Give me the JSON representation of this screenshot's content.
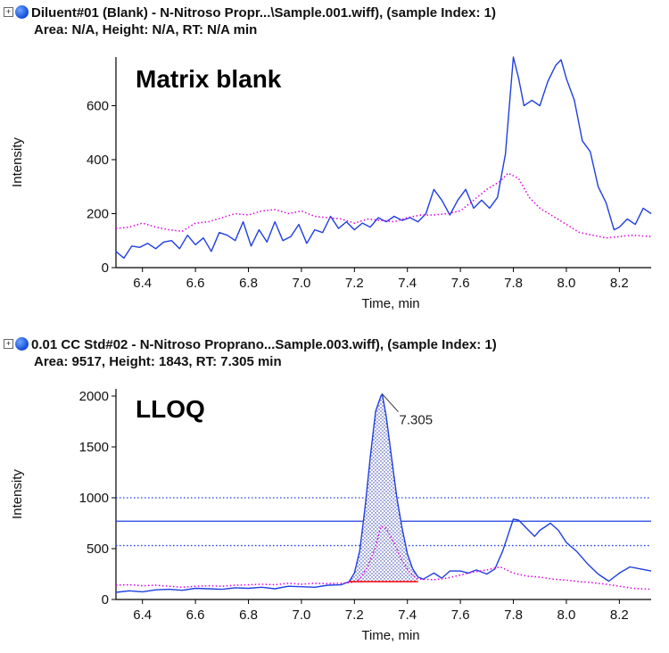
{
  "panels": [
    {
      "expander": "+",
      "header": "Diluent#01 (Blank) - N-Nitroso Propr...\\Sample.001.wiff), (sample Index: 1)",
      "subheader": "Area: N/A, Height: N/A, RT: N/A min",
      "colors": {
        "blue": "#1f3fe0",
        "magenta": "#e000e0",
        "red": "#ff0000"
      }
    },
    {
      "expander": "+",
      "header": "0.01 CC Std#02 - N-Nitroso Proprano...Sample.003.wiff), (sample Index: 1)",
      "subheader": "Area: 9517, Height: 1843, RT: 7.305 min"
    }
  ],
  "chart_data": [
    {
      "type": "line",
      "label": "Matrix blank",
      "xlabel": "Time, min",
      "ylabel": "Intensity",
      "xlim": [
        6.3,
        8.32
      ],
      "ylim": [
        0,
        780
      ],
      "xticks": [
        6.4,
        6.6,
        6.8,
        7.0,
        7.2,
        7.4,
        7.6,
        7.8,
        8.0,
        8.2
      ],
      "yticks": [
        0,
        200,
        400,
        600
      ],
      "series": [
        {
          "color": "#1f3fe0",
          "style": "solid",
          "x": [
            6.3,
            6.33,
            6.36,
            6.39,
            6.42,
            6.45,
            6.48,
            6.51,
            6.54,
            6.57,
            6.6,
            6.63,
            6.66,
            6.69,
            6.72,
            6.75,
            6.78,
            6.81,
            6.84,
            6.87,
            6.9,
            6.93,
            6.96,
            6.99,
            7.02,
            7.05,
            7.08,
            7.11,
            7.14,
            7.17,
            7.2,
            7.23,
            7.26,
            7.29,
            7.32,
            7.35,
            7.38,
            7.41,
            7.44,
            7.47,
            7.5,
            7.53,
            7.56,
            7.59,
            7.62,
            7.65,
            7.68,
            7.71,
            7.74,
            7.77,
            7.8,
            7.82,
            7.84,
            7.87,
            7.9,
            7.93,
            7.96,
            7.98,
            8.0,
            8.03,
            8.06,
            8.09,
            8.12,
            8.15,
            8.18,
            8.2,
            8.23,
            8.26,
            8.29,
            8.32
          ],
          "y": [
            60,
            35,
            80,
            75,
            90,
            70,
            95,
            100,
            70,
            120,
            85,
            110,
            60,
            130,
            120,
            100,
            170,
            80,
            140,
            95,
            170,
            100,
            115,
            160,
            90,
            140,
            130,
            190,
            145,
            170,
            140,
            165,
            150,
            185,
            170,
            190,
            175,
            185,
            170,
            200,
            290,
            250,
            195,
            250,
            290,
            220,
            250,
            220,
            260,
            420,
            780,
            700,
            600,
            620,
            600,
            690,
            750,
            770,
            700,
            620,
            470,
            430,
            300,
            240,
            140,
            150,
            180,
            160,
            220,
            200
          ]
        },
        {
          "color": "#e000e0",
          "style": "dotted",
          "x": [
            6.3,
            6.35,
            6.4,
            6.45,
            6.5,
            6.55,
            6.6,
            6.65,
            6.7,
            6.75,
            6.8,
            6.85,
            6.9,
            6.95,
            7.0,
            7.05,
            7.1,
            7.15,
            7.2,
            7.25,
            7.3,
            7.35,
            7.4,
            7.45,
            7.5,
            7.55,
            7.6,
            7.65,
            7.7,
            7.75,
            7.78,
            7.82,
            7.86,
            7.9,
            7.95,
            8.0,
            8.05,
            8.1,
            8.15,
            8.2,
            8.25,
            8.32
          ],
          "y": [
            145,
            150,
            165,
            150,
            140,
            135,
            165,
            170,
            185,
            200,
            195,
            210,
            215,
            200,
            210,
            190,
            185,
            180,
            165,
            180,
            175,
            170,
            185,
            195,
            195,
            200,
            210,
            250,
            290,
            320,
            350,
            330,
            260,
            220,
            190,
            160,
            130,
            120,
            110,
            115,
            120,
            115
          ]
        }
      ]
    },
    {
      "type": "line",
      "label": "LLOQ",
      "xlabel": "Time, min",
      "ylabel": "Intensity",
      "xlim": [
        6.3,
        8.32
      ],
      "ylim": [
        0,
        2070
      ],
      "xticks": [
        6.4,
        6.6,
        6.8,
        7.0,
        7.2,
        7.4,
        7.6,
        7.8,
        8.0,
        8.2
      ],
      "yticks": [
        0,
        500,
        1000,
        1500,
        2000
      ],
      "hlines": [
        {
          "y": 1000,
          "style": "dotted",
          "color": "#1f3fe0"
        },
        {
          "y": 770,
          "style": "solid",
          "color": "#1f3fe0"
        },
        {
          "y": 530,
          "style": "dotted",
          "color": "#1f3fe0"
        }
      ],
      "peak": {
        "apex_x": 7.305,
        "apex_y": 2020,
        "label": "7.305",
        "start_x": 7.18,
        "end_x": 7.44,
        "baseline_y": 175
      },
      "series": [
        {
          "color": "#1f3fe0",
          "style": "solid",
          "x": [
            6.3,
            6.35,
            6.4,
            6.45,
            6.5,
            6.55,
            6.6,
            6.65,
            6.7,
            6.75,
            6.8,
            6.85,
            6.9,
            6.95,
            7.0,
            7.05,
            7.1,
            7.15,
            7.18,
            7.2,
            7.22,
            7.24,
            7.26,
            7.28,
            7.3,
            7.305,
            7.32,
            7.34,
            7.36,
            7.38,
            7.4,
            7.42,
            7.44,
            7.46,
            7.48,
            7.5,
            7.53,
            7.56,
            7.6,
            7.63,
            7.66,
            7.7,
            7.73,
            7.76,
            7.8,
            7.82,
            7.85,
            7.88,
            7.9,
            7.94,
            7.97,
            8.0,
            8.04,
            8.08,
            8.12,
            8.16,
            8.2,
            8.24,
            8.28,
            8.32
          ],
          "y": [
            70,
            85,
            75,
            95,
            100,
            90,
            110,
            105,
            100,
            115,
            110,
            120,
            105,
            130,
            125,
            120,
            140,
            145,
            175,
            260,
            480,
            900,
            1400,
            1850,
            2000,
            2020,
            1800,
            1400,
            1000,
            700,
            450,
            300,
            220,
            200,
            230,
            260,
            210,
            280,
            280,
            260,
            290,
            250,
            300,
            480,
            790,
            780,
            700,
            620,
            680,
            750,
            680,
            560,
            470,
            350,
            250,
            180,
            260,
            320,
            300,
            280
          ]
        },
        {
          "color": "#e000e0",
          "style": "dotted",
          "x": [
            6.3,
            6.35,
            6.4,
            6.45,
            6.5,
            6.55,
            6.6,
            6.65,
            6.7,
            6.75,
            6.8,
            6.85,
            6.9,
            6.95,
            7.0,
            7.05,
            7.1,
            7.15,
            7.2,
            7.22,
            7.25,
            7.28,
            7.3,
            7.32,
            7.35,
            7.38,
            7.41,
            7.44,
            7.5,
            7.55,
            7.6,
            7.65,
            7.7,
            7.75,
            7.8,
            7.85,
            7.9,
            7.95,
            8.0,
            8.05,
            8.1,
            8.15,
            8.2,
            8.25,
            8.32
          ],
          "y": [
            140,
            145,
            135,
            140,
            130,
            120,
            130,
            135,
            130,
            140,
            145,
            150,
            145,
            160,
            150,
            160,
            155,
            160,
            170,
            200,
            320,
            520,
            720,
            700,
            550,
            380,
            260,
            200,
            195,
            210,
            240,
            270,
            290,
            320,
            260,
            230,
            220,
            200,
            190,
            175,
            165,
            150,
            130,
            110,
            100
          ]
        }
      ]
    }
  ]
}
